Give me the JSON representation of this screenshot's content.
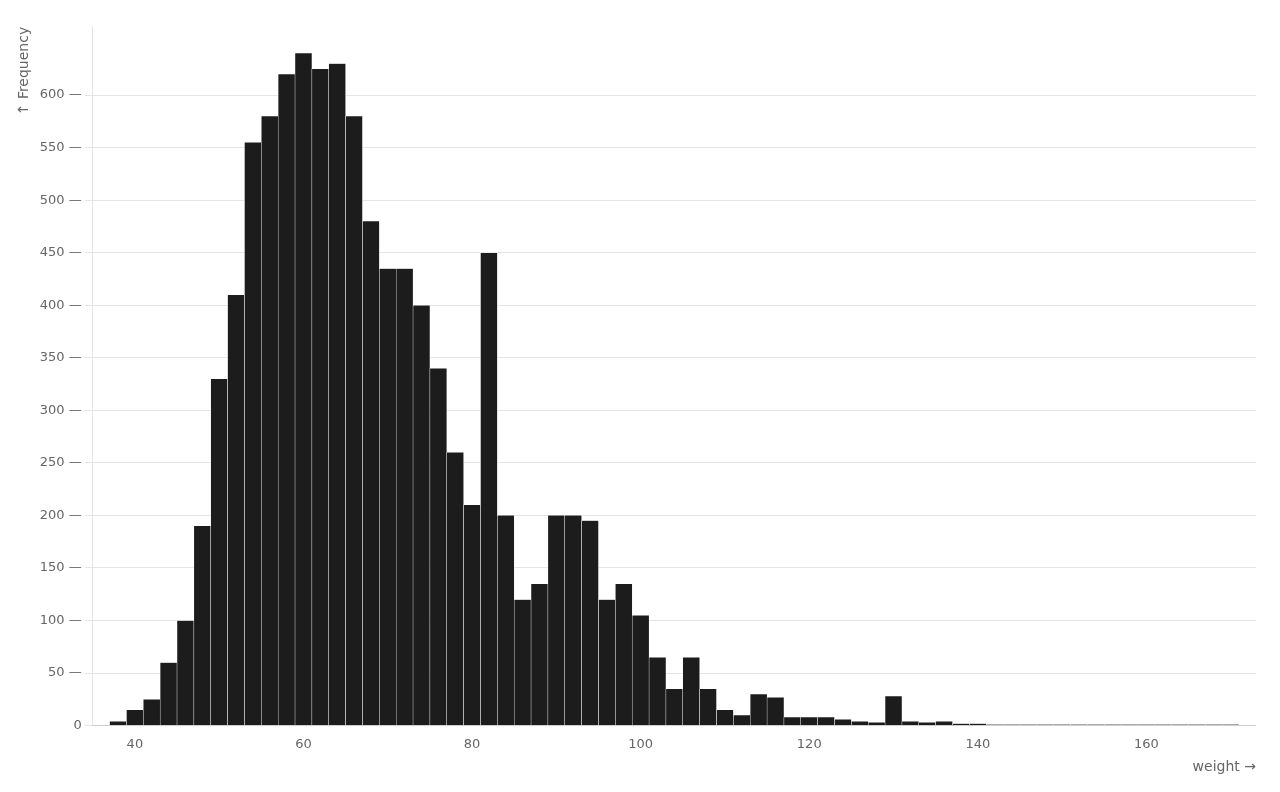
{
  "chart_data": {
    "type": "histogram",
    "xlabel": "weight →",
    "ylabel": "↑ Frequency",
    "color": "#1c1c1c",
    "xlim": [
      35,
      173
    ],
    "ylim": [
      0,
      665
    ],
    "xticks": [
      40,
      60,
      80,
      100,
      120,
      140,
      160
    ],
    "yticks": [
      0,
      {
        "value": 50,
        "label": "50 —"
      },
      {
        "value": 100,
        "label": "100 —"
      },
      {
        "value": 150,
        "label": "150 —"
      },
      {
        "value": 200,
        "label": "200 —"
      },
      {
        "value": 250,
        "label": "250 —"
      },
      {
        "value": 300,
        "label": "300 —"
      },
      {
        "value": 350,
        "label": "350 —"
      },
      {
        "value": 400,
        "label": "400 —"
      },
      {
        "value": 450,
        "label": "450 —"
      },
      {
        "value": 500,
        "label": "500 —"
      },
      {
        "value": 550,
        "label": "550 —"
      },
      {
        "value": 600,
        "label": "600 —"
      }
    ],
    "grid": "y",
    "bins": [
      37,
      39,
      41,
      43,
      45,
      47,
      49,
      51,
      53,
      55,
      57,
      59,
      61,
      63,
      65,
      67,
      69,
      71,
      73,
      75,
      77,
      79,
      81,
      83,
      85,
      87,
      89,
      91,
      93,
      95,
      97,
      99,
      101,
      103,
      105,
      107,
      109,
      111,
      113,
      115,
      117,
      119,
      121,
      123,
      125,
      127,
      129,
      131,
      133,
      135,
      137,
      139,
      141,
      143,
      145,
      147,
      149,
      151,
      153,
      155,
      157,
      159,
      161,
      163,
      165,
      167,
      169,
      171
    ],
    "values": [
      4,
      15,
      25,
      60,
      100,
      190,
      330,
      410,
      555,
      580,
      620,
      640,
      625,
      630,
      580,
      480,
      435,
      435,
      400,
      340,
      260,
      210,
      450,
      200,
      120,
      135,
      200,
      200,
      195,
      120,
      135,
      105,
      65,
      35,
      65,
      35,
      15,
      10,
      30,
      27,
      8,
      8,
      8,
      6,
      4,
      3,
      28,
      4,
      3,
      4,
      2,
      2,
      1,
      1,
      1,
      1,
      1,
      1,
      1,
      1,
      1,
      1,
      1,
      1,
      1,
      1,
      1
    ]
  }
}
